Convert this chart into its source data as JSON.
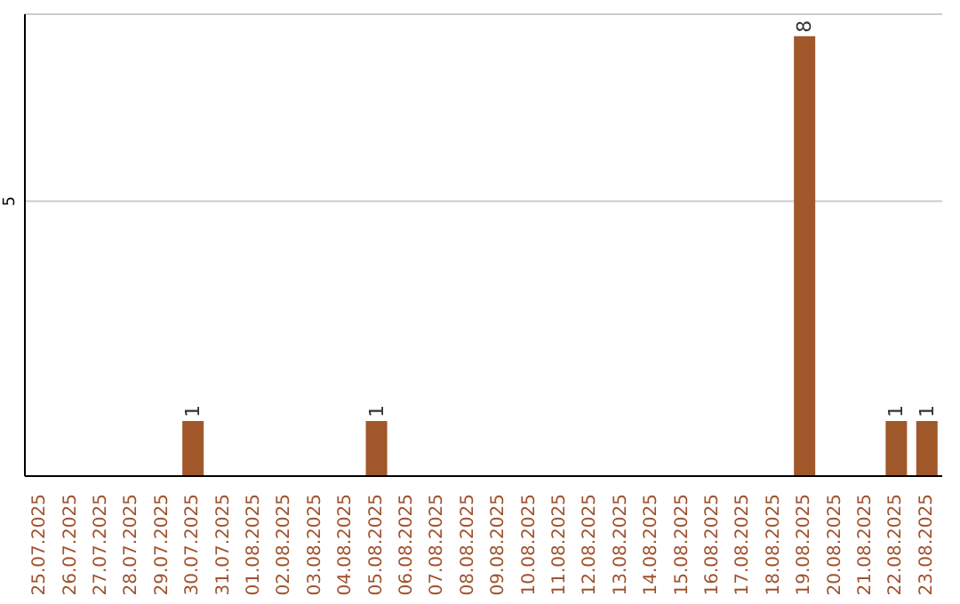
{
  "chart_data": {
    "type": "bar",
    "categories": [
      "25.07.2025",
      "26.07.2025",
      "27.07.2025",
      "28.07.2025",
      "29.07.2025",
      "30.07.2025",
      "31.07.2025",
      "01.08.2025",
      "02.08.2025",
      "03.08.2025",
      "04.08.2025",
      "05.08.2025",
      "06.08.2025",
      "07.08.2025",
      "08.08.2025",
      "09.08.2025",
      "10.08.2025",
      "11.08.2025",
      "12.08.2025",
      "13.08.2025",
      "14.08.2025",
      "15.08.2025",
      "16.08.2025",
      "17.08.2025",
      "18.08.2025",
      "19.08.2025",
      "20.08.2025",
      "21.08.2025",
      "22.08.2025",
      "23.08.2025"
    ],
    "values": [
      0,
      0,
      0,
      0,
      0,
      1,
      0,
      0,
      0,
      0,
      0,
      1,
      0,
      0,
      0,
      0,
      0,
      0,
      0,
      0,
      0,
      0,
      0,
      0,
      0,
      8,
      0,
      0,
      1,
      1
    ],
    "value_labels": [
      null,
      null,
      null,
      null,
      null,
      "1",
      null,
      null,
      null,
      null,
      null,
      "1",
      null,
      null,
      null,
      null,
      null,
      null,
      null,
      null,
      null,
      null,
      null,
      null,
      null,
      "8",
      null,
      null,
      "1",
      "1"
    ],
    "color": "#a0572a",
    "ylim": [
      0,
      8.4
    ],
    "yticks": [
      5
    ],
    "grid": "y"
  }
}
